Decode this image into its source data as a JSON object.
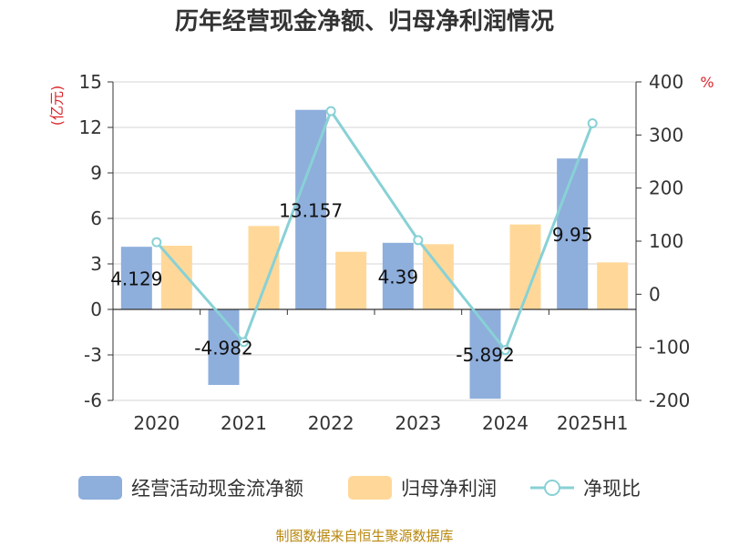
{
  "title": "历年经营现金净额、归母净利润情况",
  "source": "制图数据来自恒生聚源数据库",
  "chart_data": {
    "type": "bar",
    "categories": [
      "2020",
      "2021",
      "2022",
      "2023",
      "2024",
      "2025H1"
    ],
    "series": [
      {
        "name": "经营活动现金流净额",
        "kind": "bar",
        "axis": "left",
        "color": "#8eaedc",
        "values": [
          4.129,
          -4.982,
          13.157,
          4.39,
          -5.892,
          9.95
        ],
        "labels": [
          "4.129",
          "-4.982",
          "13.157",
          "4.39",
          "-5.892",
          "9.95"
        ]
      },
      {
        "name": "归母净利润",
        "kind": "bar",
        "axis": "left",
        "color": "#ffd899",
        "values": [
          4.2,
          5.5,
          3.8,
          4.3,
          5.6,
          3.1
        ]
      },
      {
        "name": "净现比",
        "kind": "line",
        "axis": "right",
        "color": "#88d1d6",
        "values": [
          98,
          -90,
          345,
          102,
          -105,
          322
        ]
      }
    ],
    "y_left": {
      "unit": "(亿元)",
      "range": [
        -6,
        15
      ],
      "ticks": [
        "15",
        "12",
        "9",
        "6",
        "3",
        "0",
        "-3",
        "-6"
      ]
    },
    "y_right": {
      "unit": "%",
      "range": [
        -200,
        400
      ],
      "ticks": [
        "400",
        "300",
        "200",
        "100",
        "0",
        "-100",
        "-200"
      ]
    },
    "grid": true,
    "legend": "bottom"
  }
}
